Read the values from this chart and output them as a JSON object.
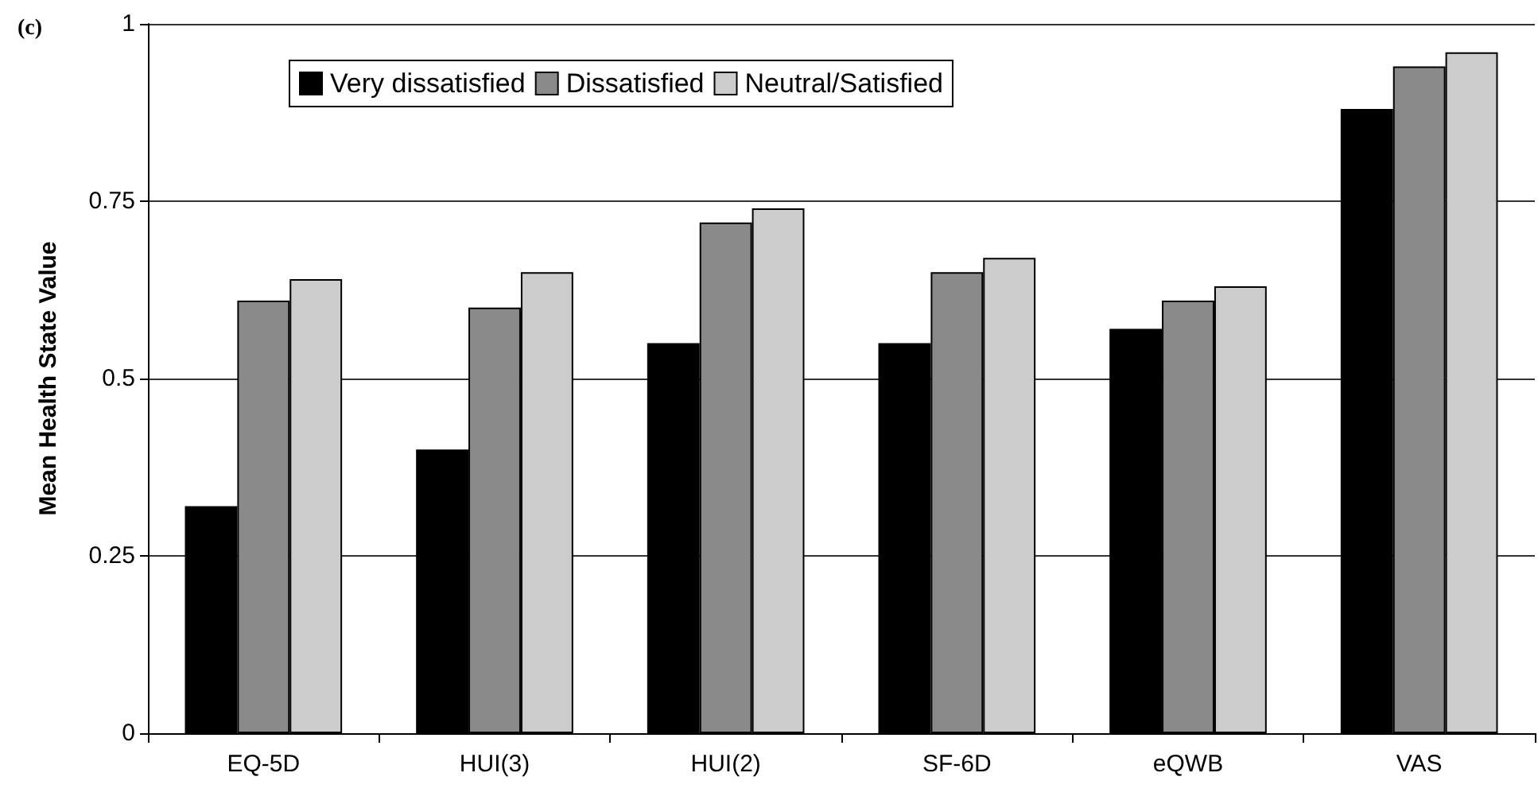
{
  "chart_data": {
    "type": "bar",
    "title": "(c)",
    "ylabel": "Mean Health State Value",
    "categories": [
      "EQ-5D",
      "HUI(3)",
      "HUI(2)",
      "SF-6D",
      "eQWB",
      "VAS"
    ],
    "series": [
      {
        "name": "Very dissatisfied",
        "color": "#000000",
        "values": [
          0.32,
          0.4,
          0.55,
          0.55,
          0.57,
          0.88
        ]
      },
      {
        "name": "Dissatisfied",
        "color": "#8a8a8a",
        "values": [
          0.61,
          0.6,
          0.72,
          0.65,
          0.61,
          0.94
        ]
      },
      {
        "name": "Neutral/Satisfied",
        "color": "#cccccc",
        "values": [
          0.64,
          0.65,
          0.74,
          0.67,
          0.63,
          0.96
        ]
      }
    ],
    "ylim": [
      0,
      1
    ],
    "yticks": [
      0,
      0.25,
      0.5,
      0.75,
      1
    ],
    "grid": "y",
    "legend": "top"
  }
}
